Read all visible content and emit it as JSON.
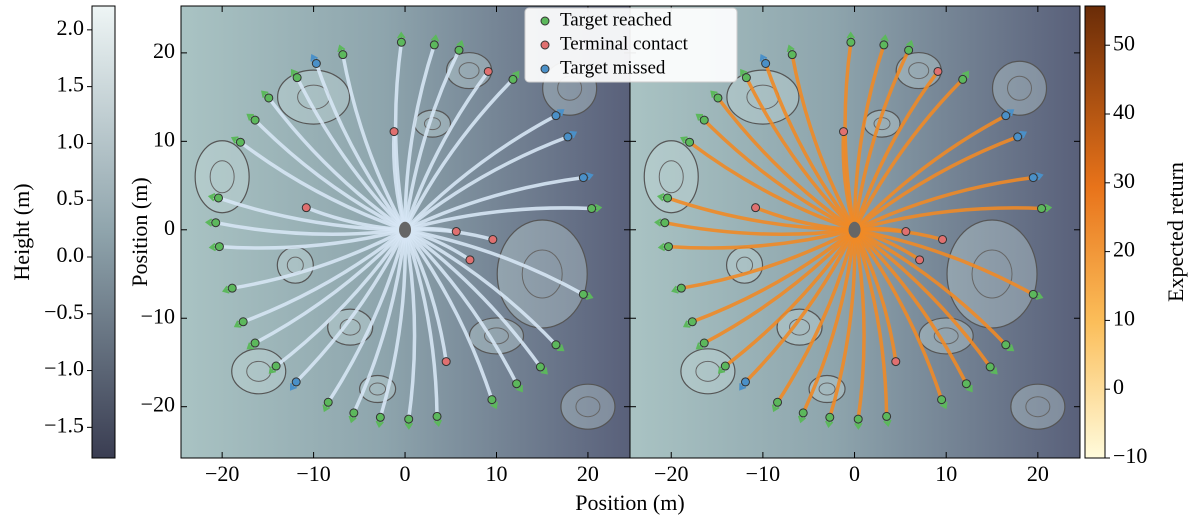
{
  "chart_data": {
    "type": "scatter",
    "xlabel": "Position (m)",
    "ylabel": "Position (m)",
    "xlim": [
      -24.5,
      24.6
    ],
    "ylim": [
      -25.8,
      25.3
    ],
    "xticks": [
      {
        "value": -20,
        "label": "−20"
      },
      {
        "value": -10,
        "label": "−10"
      },
      0,
      10,
      20
    ],
    "yticks": [
      {
        "value": -20,
        "label": "−20"
      },
      {
        "value": -10,
        "label": "−10"
      },
      0,
      10,
      20
    ],
    "legend": "upper center",
    "series": [
      {
        "name": "Target reached",
        "color": "#5cb85c",
        "x": [
          -0.4,
          3.2,
          5.9,
          -6.8,
          11.8,
          -11.8,
          -14.9,
          -16.4,
          -18,
          -20.4,
          -20.7,
          -20.3,
          -18.9,
          -17.7,
          -16.4,
          -14.1,
          -8.4,
          -5.6,
          -2.7,
          0.4,
          3.5,
          9.5,
          12.2,
          14.8,
          16.5,
          19.5,
          20.4
        ],
        "y": [
          21.2,
          20.9,
          20.3,
          19.8,
          17,
          17.2,
          14.9,
          12.4,
          9.9,
          3.6,
          0.8,
          -1.9,
          -6.6,
          -10.4,
          -12.8,
          -15.4,
          -19.5,
          -20.7,
          -21.2,
          -21.4,
          -21.1,
          -19.2,
          -17.4,
          -15.5,
          -13,
          -7.3,
          2.4
        ]
      },
      {
        "name": "Terminal contact",
        "color": "#e07070",
        "x": [
          -1.2,
          -10.8,
          5.6,
          9.6,
          7.1,
          4.5,
          9.1
        ],
        "y": [
          11.1,
          2.5,
          -0.2,
          -1.1,
          -3.4,
          -14.9,
          17.9
        ]
      },
      {
        "name": "Target missed",
        "color": "#4a90c8",
        "x": [
          -9.7,
          16.5,
          17.8,
          19.5,
          -11.9
        ],
        "y": [
          18.8,
          12.9,
          10.5,
          5.9,
          -17.2
        ]
      }
    ],
    "colorbar_left": {
      "label": "Height (m)",
      "lim": [
        -1.77,
        2.21
      ],
      "ticks": [
        {
          "value": -1.5,
          "label": "−1.5"
        },
        {
          "value": -1.0,
          "label": "−1.0"
        },
        {
          "value": -0.5,
          "label": "−0.5"
        },
        {
          "value": 0,
          "label": "0.0"
        },
        0.5,
        {
          "value": 1,
          "label": "1.0"
        },
        1.5,
        {
          "value": 2,
          "label": "2.0"
        }
      ]
    },
    "colorbar_right": {
      "label": "Expected return",
      "lim": [
        -10,
        55.7
      ],
      "ticks": [
        {
          "value": -10,
          "label": "−10"
        },
        0,
        10,
        20,
        30,
        40,
        50
      ]
    }
  }
}
